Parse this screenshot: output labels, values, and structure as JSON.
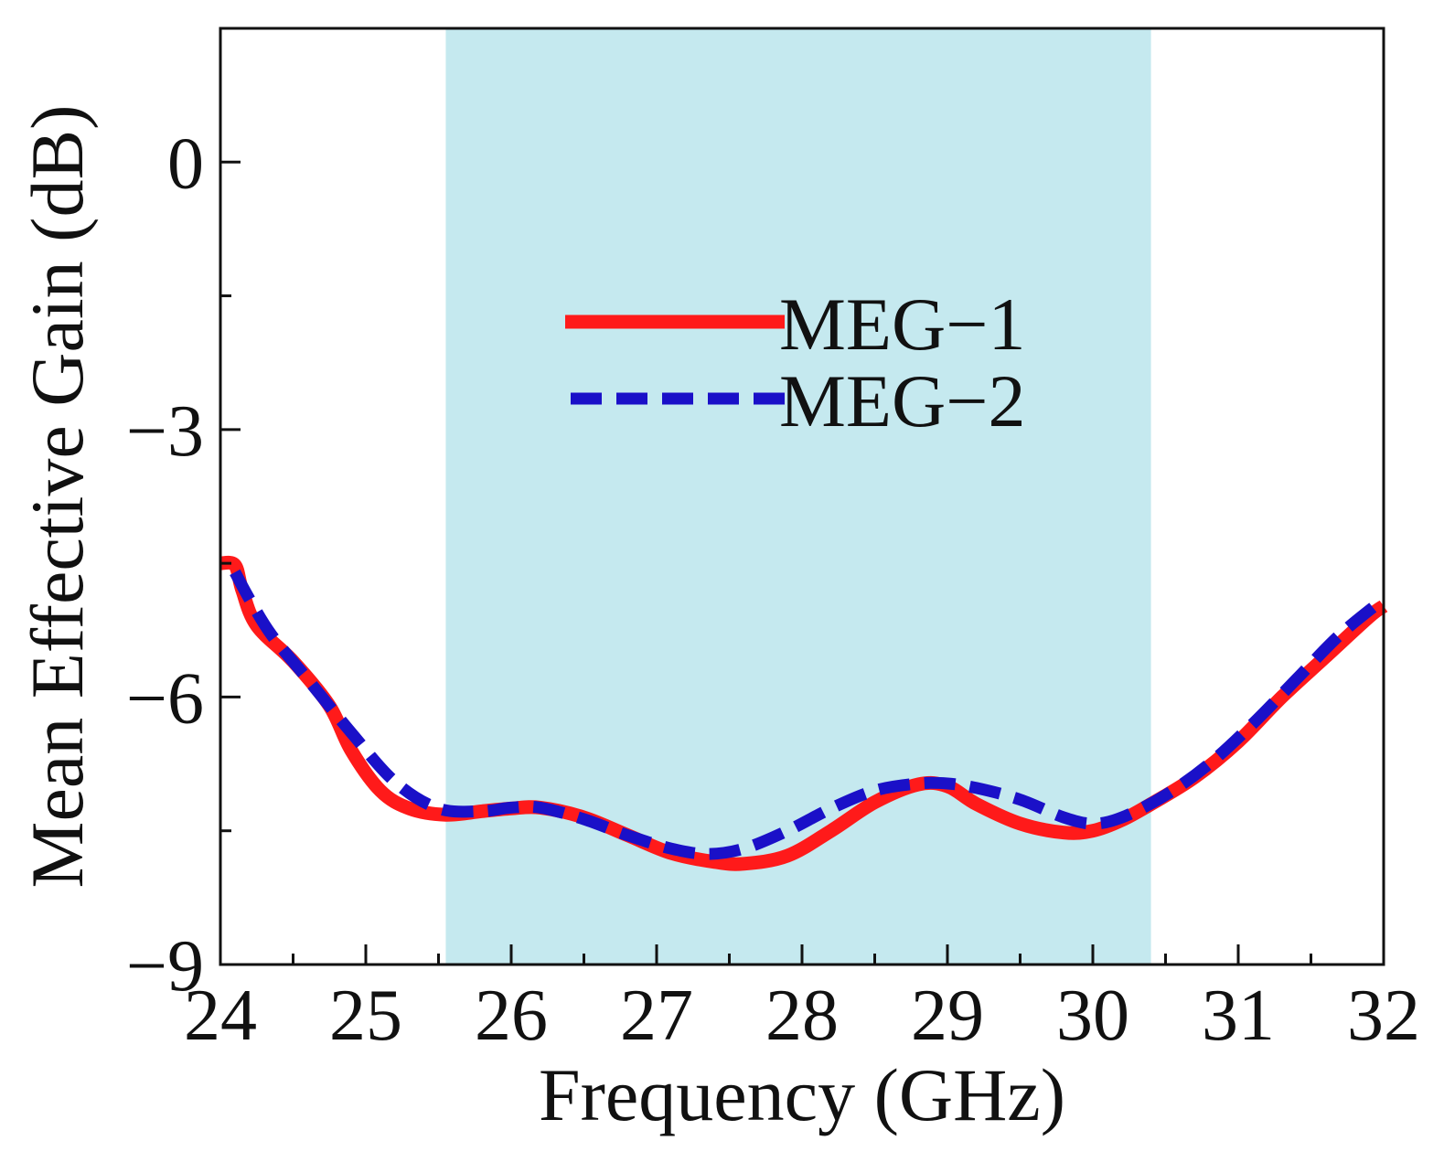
{
  "chart_data": {
    "type": "line",
    "xlabel": "Frequency (GHz)",
    "ylabel": "Mean Effective Gain (dB)",
    "xlim": [
      24,
      32
    ],
    "ylim": [
      -9,
      1.5
    ],
    "x_ticks": [
      24,
      25,
      26,
      27,
      28,
      29,
      30,
      31,
      32
    ],
    "x_tick_labels": [
      "24",
      "25",
      "26",
      "27",
      "28",
      "29",
      "30",
      "31",
      "32"
    ],
    "y_ticks": [
      0,
      -3,
      -6,
      -9
    ],
    "y_tick_labels": [
      "0",
      "−3",
      "−6",
      "−9"
    ],
    "grid": false,
    "legend_placement": "upper-center",
    "shaded_band": {
      "x": [
        25.55,
        30.4
      ],
      "color": "#c5e9ef"
    },
    "series": [
      {
        "name": "MEG−1",
        "color": "#ff1a1a",
        "style": "solid",
        "x": [
          24.0,
          24.1,
          24.15,
          24.25,
          24.5,
          24.75,
          24.9,
          25.1,
          25.3,
          25.55,
          25.8,
          26.0,
          26.2,
          26.5,
          26.8,
          27.1,
          27.4,
          27.6,
          27.9,
          28.2,
          28.5,
          28.8,
          29.0,
          29.2,
          29.5,
          29.8,
          30.0,
          30.2,
          30.4,
          30.7,
          31.0,
          31.3,
          31.6,
          31.9,
          32.0
        ],
        "y": [
          -4.5,
          -4.52,
          -4.8,
          -5.2,
          -5.6,
          -6.1,
          -6.6,
          -7.05,
          -7.25,
          -7.32,
          -7.28,
          -7.25,
          -7.24,
          -7.35,
          -7.55,
          -7.75,
          -7.85,
          -7.87,
          -7.78,
          -7.5,
          -7.18,
          -6.98,
          -7.0,
          -7.2,
          -7.42,
          -7.52,
          -7.5,
          -7.38,
          -7.2,
          -6.9,
          -6.5,
          -6.0,
          -5.55,
          -5.1,
          -4.98
        ]
      },
      {
        "name": "MEG−2",
        "color": "#1a10c8",
        "style": "dashed",
        "x": [
          24.1,
          24.2,
          24.35,
          24.6,
          24.9,
          25.2,
          25.5,
          25.8,
          26.0,
          26.2,
          26.5,
          26.8,
          27.1,
          27.35,
          27.6,
          27.9,
          28.2,
          28.5,
          28.8,
          29.0,
          29.2,
          29.5,
          29.8,
          30.0,
          30.2,
          30.5,
          30.8,
          31.1,
          31.4,
          31.7,
          32.0
        ],
        "y": [
          -4.6,
          -4.9,
          -5.3,
          -5.8,
          -6.4,
          -6.95,
          -7.25,
          -7.28,
          -7.24,
          -7.24,
          -7.37,
          -7.55,
          -7.7,
          -7.76,
          -7.7,
          -7.5,
          -7.25,
          -7.05,
          -6.97,
          -6.97,
          -7.02,
          -7.15,
          -7.35,
          -7.42,
          -7.35,
          -7.1,
          -6.75,
          -6.3,
          -5.8,
          -5.3,
          -4.9
        ]
      }
    ]
  }
}
